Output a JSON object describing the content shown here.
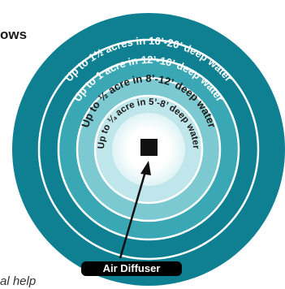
{
  "rings": [
    {
      "label": "Up to 1½ acres in 16’-20’ deep water",
      "color": "#0f7f92"
    },
    {
      "label": "Up to 1 acre in 12’-16’ deep water",
      "color": "#3aa7b5"
    },
    {
      "label": "Up to ½ acre in 8’-12’ deep water",
      "color": "#7cc9d1"
    },
    {
      "label": "Up to ¼ acre in 5’-8’ deep water",
      "color": "#bfe6ea"
    }
  ],
  "center_color": "#ffffff",
  "diffuser_label": "Air Diffuser",
  "side_text_top": "ows",
  "side_text_bottom": "al help"
}
